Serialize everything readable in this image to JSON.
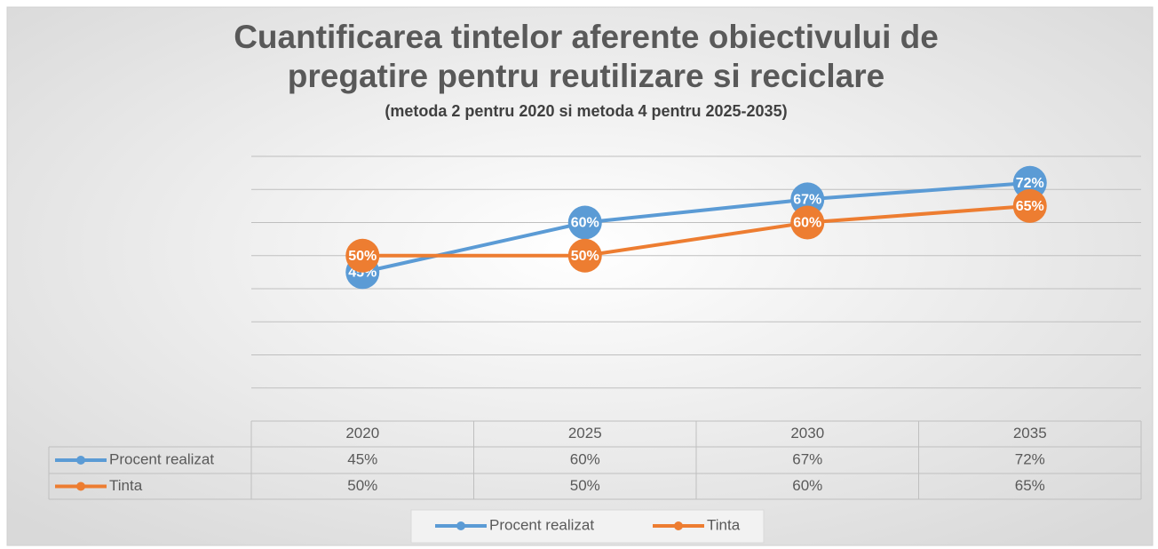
{
  "chart_data": {
    "type": "line",
    "title": "Cuantificarea tintelor aferente obiectivului de",
    "title_line2": "pregatire pentru reutilizare si reciclare",
    "subtitle": "(metoda 2 pentru 2020 si metoda 4 pentru 2025-2035)",
    "categories": [
      "2020",
      "2025",
      "2030",
      "2035"
    ],
    "series": [
      {
        "name": "Procent realizat",
        "color": "#5b9bd5",
        "values": [
          45,
          60,
          67,
          72
        ],
        "value_labels": [
          "45%",
          "60%",
          "67%",
          "72%"
        ]
      },
      {
        "name": "Tinta",
        "color": "#ed7d31",
        "values": [
          50,
          50,
          60,
          65
        ],
        "value_labels": [
          "50%",
          "50%",
          "60%",
          "65%"
        ]
      }
    ],
    "ylim": [
      0,
      80
    ],
    "yticks": [
      10,
      20,
      30,
      40,
      50,
      60,
      70,
      80
    ],
    "grid": true,
    "legend": "bottom"
  }
}
